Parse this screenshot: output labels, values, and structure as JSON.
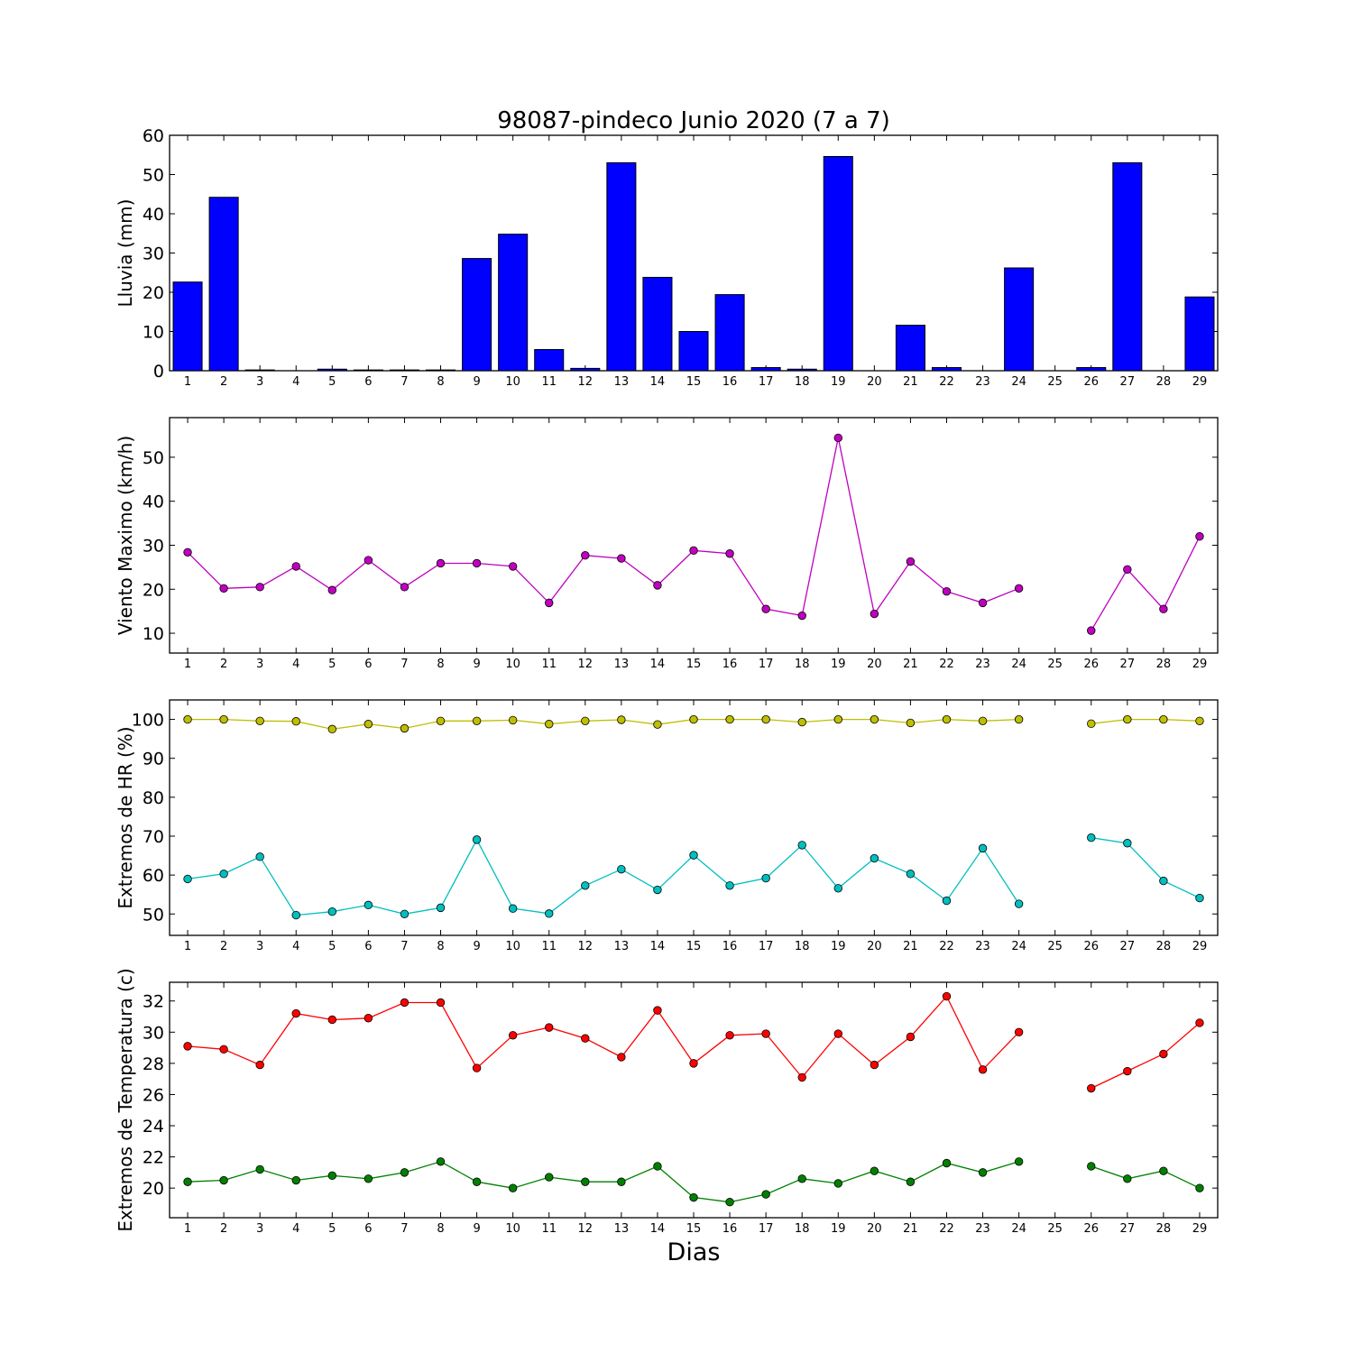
{
  "chart_data": [
    {
      "type": "bar",
      "title": "98087-pindeco Junio 2020  (7 a 7)",
      "xlabel": "",
      "ylabel": "Lluvia (mm)",
      "ylim": [
        0,
        60
      ],
      "yticks": [
        0,
        10,
        20,
        30,
        40,
        50,
        60
      ],
      "categories": [
        1,
        2,
        3,
        4,
        5,
        6,
        7,
        8,
        9,
        10,
        11,
        12,
        13,
        14,
        15,
        16,
        17,
        18,
        19,
        20,
        21,
        22,
        23,
        24,
        25,
        26,
        27,
        28,
        29
      ],
      "color": "#0000ff",
      "values": [
        22.6,
        44.2,
        0.2,
        0.0,
        0.4,
        0.2,
        0.2,
        0.2,
        28.6,
        34.8,
        5.4,
        0.6,
        53.0,
        23.8,
        10.0,
        19.4,
        0.8,
        0.4,
        54.6,
        0.0,
        11.6,
        0.8,
        0.0,
        26.2,
        0.0,
        0.8,
        53.0,
        0.0,
        18.8
      ]
    },
    {
      "type": "line",
      "xlabel": "",
      "ylabel": "Viento Maximo (km/h)",
      "ylim": [
        5.5,
        59
      ],
      "yticks": [
        10,
        20,
        30,
        40,
        50
      ],
      "x": [
        1,
        2,
        3,
        4,
        5,
        6,
        7,
        8,
        9,
        10,
        11,
        12,
        13,
        14,
        15,
        16,
        17,
        18,
        19,
        20,
        21,
        22,
        23,
        24,
        25,
        26,
        27,
        28,
        29
      ],
      "series": [
        {
          "color": "#bf00bf",
          "values": [
            28.4,
            20.2,
            20.5,
            25.2,
            19.8,
            26.6,
            20.5,
            25.9,
            25.9,
            25.2,
            16.9,
            27.7,
            27.0,
            20.9,
            28.8,
            28.1,
            15.5,
            14.0,
            54.4,
            14.4,
            26.3,
            19.5,
            16.9,
            20.2,
            null,
            10.6,
            24.5,
            15.5,
            32.0
          ]
        }
      ]
    },
    {
      "type": "line",
      "xlabel": "",
      "ylabel": "Extremos de HR (%)",
      "ylim": [
        44.5,
        105
      ],
      "yticks": [
        50,
        60,
        70,
        80,
        90,
        100
      ],
      "x": [
        1,
        2,
        3,
        4,
        5,
        6,
        7,
        8,
        9,
        10,
        11,
        12,
        13,
        14,
        15,
        16,
        17,
        18,
        19,
        20,
        21,
        22,
        23,
        24,
        25,
        26,
        27,
        28,
        29
      ],
      "series": [
        {
          "color": "#bfbf00",
          "values": [
            100,
            100,
            99.6,
            99.5,
            97.5,
            98.8,
            97.7,
            99.6,
            99.6,
            99.8,
            98.8,
            99.6,
            99.9,
            98.7,
            100,
            100,
            100,
            99.3,
            100,
            100,
            99.1,
            100,
            99.6,
            100,
            null,
            98.9,
            100,
            100,
            99.6
          ]
        },
        {
          "color": "#00bfbf",
          "values": [
            59.0,
            60.3,
            64.7,
            49.7,
            50.6,
            52.3,
            50.0,
            51.6,
            69.1,
            51.4,
            50.1,
            57.3,
            61.5,
            56.2,
            65.1,
            57.3,
            59.2,
            67.7,
            56.6,
            64.3,
            60.3,
            53.4,
            66.9,
            52.6,
            null,
            69.6,
            68.2,
            58.5,
            54.1
          ]
        }
      ]
    },
    {
      "type": "line",
      "xlabel": "Dias",
      "ylabel": "Extremos de Temperatura (c)",
      "ylim": [
        18.1,
        33.2
      ],
      "yticks": [
        20,
        22,
        24,
        26,
        28,
        30,
        32
      ],
      "x": [
        1,
        2,
        3,
        4,
        5,
        6,
        7,
        8,
        9,
        10,
        11,
        12,
        13,
        14,
        15,
        16,
        17,
        18,
        19,
        20,
        21,
        22,
        23,
        24,
        25,
        26,
        27,
        28,
        29
      ],
      "series": [
        {
          "color": "#ff0000",
          "values": [
            29.1,
            28.9,
            27.9,
            31.2,
            30.8,
            30.9,
            31.9,
            31.9,
            27.7,
            29.8,
            30.3,
            29.6,
            28.4,
            31.4,
            28.0,
            29.8,
            29.9,
            27.1,
            29.9,
            27.9,
            29.7,
            32.3,
            27.6,
            30.0,
            null,
            26.4,
            27.5,
            28.6,
            30.6
          ]
        },
        {
          "color": "#008000",
          "values": [
            20.4,
            20.5,
            21.2,
            20.5,
            20.8,
            20.6,
            21.0,
            21.7,
            20.4,
            20.0,
            20.7,
            20.4,
            20.4,
            21.4,
            19.4,
            19.1,
            19.6,
            20.6,
            20.3,
            21.1,
            20.4,
            21.6,
            21.0,
            21.7,
            null,
            21.4,
            20.6,
            21.1,
            20.0
          ]
        }
      ]
    }
  ]
}
